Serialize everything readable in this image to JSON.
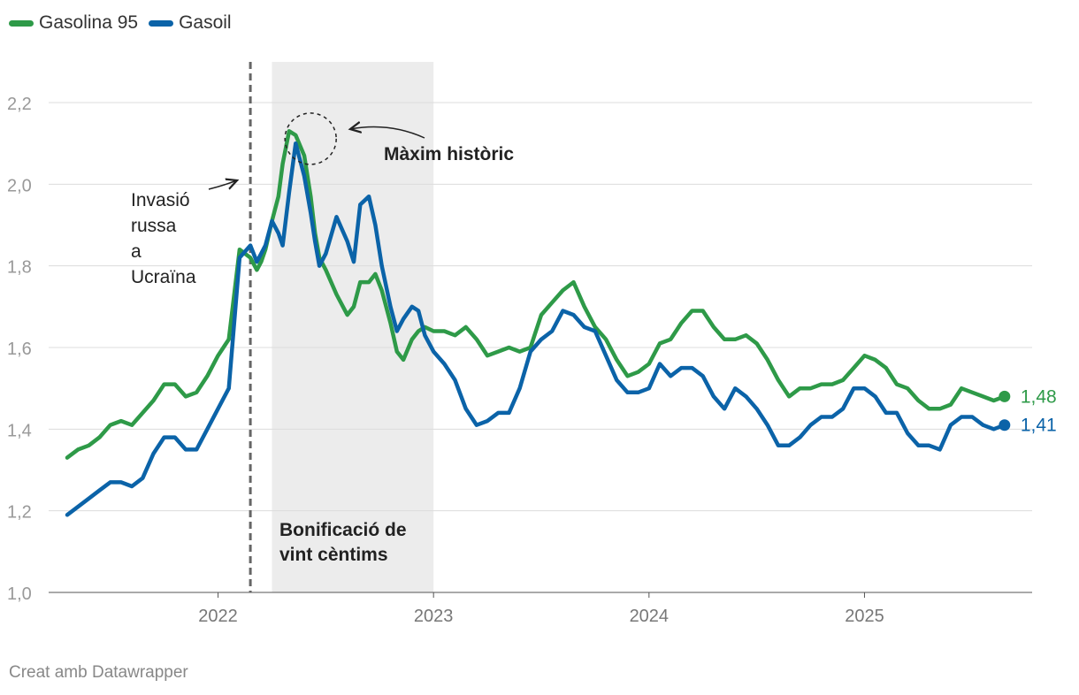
{
  "legend": [
    {
      "label": "Gasolina 95",
      "color": "#2e9a48"
    },
    {
      "label": "Gasoil",
      "color": "#0b63a8"
    }
  ],
  "annotations": {
    "invasion": [
      "Invasió",
      "russa",
      "a",
      "Ucraïna"
    ],
    "max": "Màxim històric",
    "bonus": [
      "Bonificació de",
      "vint cèntims"
    ]
  },
  "footer": "Creat amb Datawrapper",
  "chart_data": {
    "type": "line",
    "ylim": [
      1.0,
      2.2
    ],
    "yticks": [
      {
        "v": 1.0,
        "label": "1,0"
      },
      {
        "v": 1.2,
        "label": "1,2"
      },
      {
        "v": 1.4,
        "label": "1,4"
      },
      {
        "v": 1.6,
        "label": "1,6"
      },
      {
        "v": 1.8,
        "label": "1,8"
      },
      {
        "v": 2.0,
        "label": "2,0"
      },
      {
        "v": 2.2,
        "label": "2,2"
      }
    ],
    "xlim": [
      2021.3,
      2025.7
    ],
    "xticks": [
      {
        "v": 2022,
        "label": "2022"
      },
      {
        "v": 2023,
        "label": "2023"
      },
      {
        "v": 2024,
        "label": "2024"
      },
      {
        "v": 2025,
        "label": "2025"
      }
    ],
    "invasion_date": 2022.15,
    "bonus_period": [
      2022.25,
      2023.0
    ],
    "max_point": {
      "x": 2022.45,
      "y": 2.12
    },
    "series": [
      {
        "name": "Gasolina 95",
        "color": "#2e9a48",
        "end_label": "1,48",
        "x": [
          2021.3,
          2021.35,
          2021.4,
          2021.45,
          2021.5,
          2021.55,
          2021.6,
          2021.65,
          2021.7,
          2021.75,
          2021.8,
          2021.85,
          2021.9,
          2021.95,
          2022.0,
          2022.05,
          2022.1,
          2022.15,
          2022.18,
          2022.2,
          2022.22,
          2022.25,
          2022.28,
          2022.3,
          2022.33,
          2022.36,
          2022.4,
          2022.43,
          2022.45,
          2022.47,
          2022.5,
          2022.55,
          2022.6,
          2022.63,
          2022.66,
          2022.7,
          2022.73,
          2022.76,
          2022.8,
          2022.83,
          2022.86,
          2022.9,
          2022.93,
          2022.96,
          2023.0,
          2023.05,
          2023.1,
          2023.15,
          2023.2,
          2023.25,
          2023.3,
          2023.35,
          2023.4,
          2023.45,
          2023.5,
          2023.55,
          2023.6,
          2023.65,
          2023.7,
          2023.75,
          2023.8,
          2023.85,
          2023.9,
          2023.95,
          2024.0,
          2024.05,
          2024.1,
          2024.15,
          2024.2,
          2024.25,
          2024.3,
          2024.35,
          2024.4,
          2024.45,
          2024.5,
          2024.55,
          2024.6,
          2024.65,
          2024.7,
          2024.75,
          2024.8,
          2024.85,
          2024.9,
          2024.95,
          2025.0,
          2025.05,
          2025.1,
          2025.15,
          2025.2,
          2025.25,
          2025.3,
          2025.35,
          2025.4,
          2025.45,
          2025.5,
          2025.55,
          2025.6,
          2025.65
        ],
        "values": [
          1.33,
          1.35,
          1.36,
          1.38,
          1.41,
          1.42,
          1.41,
          1.44,
          1.47,
          1.51,
          1.51,
          1.48,
          1.49,
          1.53,
          1.58,
          1.62,
          1.84,
          1.82,
          1.79,
          1.81,
          1.84,
          1.91,
          1.97,
          2.05,
          2.13,
          2.12,
          2.07,
          1.97,
          1.88,
          1.82,
          1.79,
          1.73,
          1.68,
          1.7,
          1.76,
          1.76,
          1.78,
          1.74,
          1.66,
          1.59,
          1.57,
          1.62,
          1.64,
          1.65,
          1.64,
          1.64,
          1.63,
          1.65,
          1.62,
          1.58,
          1.59,
          1.6,
          1.59,
          1.6,
          1.68,
          1.71,
          1.74,
          1.76,
          1.7,
          1.65,
          1.62,
          1.57,
          1.53,
          1.54,
          1.56,
          1.61,
          1.62,
          1.66,
          1.69,
          1.69,
          1.65,
          1.62,
          1.62,
          1.63,
          1.61,
          1.57,
          1.52,
          1.48,
          1.5,
          1.5,
          1.51,
          1.51,
          1.52,
          1.55,
          1.58,
          1.57,
          1.55,
          1.51,
          1.5,
          1.47,
          1.45,
          1.45,
          1.46,
          1.5,
          1.49,
          1.48,
          1.47,
          1.48
        ]
      },
      {
        "name": "Gasoil",
        "color": "#0b63a8",
        "end_label": "1,41",
        "x": [
          2021.3,
          2021.35,
          2021.4,
          2021.45,
          2021.5,
          2021.55,
          2021.6,
          2021.65,
          2021.7,
          2021.75,
          2021.8,
          2021.85,
          2021.9,
          2021.95,
          2022.0,
          2022.05,
          2022.1,
          2022.15,
          2022.18,
          2022.2,
          2022.22,
          2022.25,
          2022.28,
          2022.3,
          2022.33,
          2022.36,
          2022.4,
          2022.43,
          2022.45,
          2022.47,
          2022.5,
          2022.55,
          2022.6,
          2022.63,
          2022.66,
          2022.7,
          2022.73,
          2022.76,
          2022.8,
          2022.83,
          2022.86,
          2022.9,
          2022.93,
          2022.96,
          2023.0,
          2023.05,
          2023.1,
          2023.15,
          2023.2,
          2023.25,
          2023.3,
          2023.35,
          2023.4,
          2023.45,
          2023.5,
          2023.55,
          2023.6,
          2023.65,
          2023.7,
          2023.75,
          2023.8,
          2023.85,
          2023.9,
          2023.95,
          2024.0,
          2024.05,
          2024.1,
          2024.15,
          2024.2,
          2024.25,
          2024.3,
          2024.35,
          2024.4,
          2024.45,
          2024.5,
          2024.55,
          2024.6,
          2024.65,
          2024.7,
          2024.75,
          2024.8,
          2024.85,
          2024.9,
          2024.95,
          2025.0,
          2025.05,
          2025.1,
          2025.15,
          2025.2,
          2025.25,
          2025.3,
          2025.35,
          2025.4,
          2025.45,
          2025.5,
          2025.55,
          2025.6,
          2025.65
        ],
        "values": [
          1.19,
          1.21,
          1.23,
          1.25,
          1.27,
          1.27,
          1.26,
          1.28,
          1.34,
          1.38,
          1.38,
          1.35,
          1.35,
          1.4,
          1.45,
          1.5,
          1.82,
          1.85,
          1.81,
          1.83,
          1.85,
          1.91,
          1.88,
          1.85,
          1.98,
          2.1,
          2.02,
          1.93,
          1.86,
          1.8,
          1.83,
          1.92,
          1.86,
          1.81,
          1.95,
          1.97,
          1.9,
          1.8,
          1.7,
          1.64,
          1.67,
          1.7,
          1.69,
          1.63,
          1.59,
          1.56,
          1.52,
          1.45,
          1.41,
          1.42,
          1.44,
          1.44,
          1.5,
          1.59,
          1.62,
          1.64,
          1.69,
          1.68,
          1.65,
          1.64,
          1.58,
          1.52,
          1.49,
          1.49,
          1.5,
          1.56,
          1.53,
          1.55,
          1.55,
          1.53,
          1.48,
          1.45,
          1.5,
          1.48,
          1.45,
          1.41,
          1.36,
          1.36,
          1.38,
          1.41,
          1.43,
          1.43,
          1.45,
          1.5,
          1.5,
          1.48,
          1.44,
          1.44,
          1.39,
          1.36,
          1.36,
          1.35,
          1.41,
          1.43,
          1.43,
          1.41,
          1.4,
          1.41
        ]
      }
    ]
  }
}
